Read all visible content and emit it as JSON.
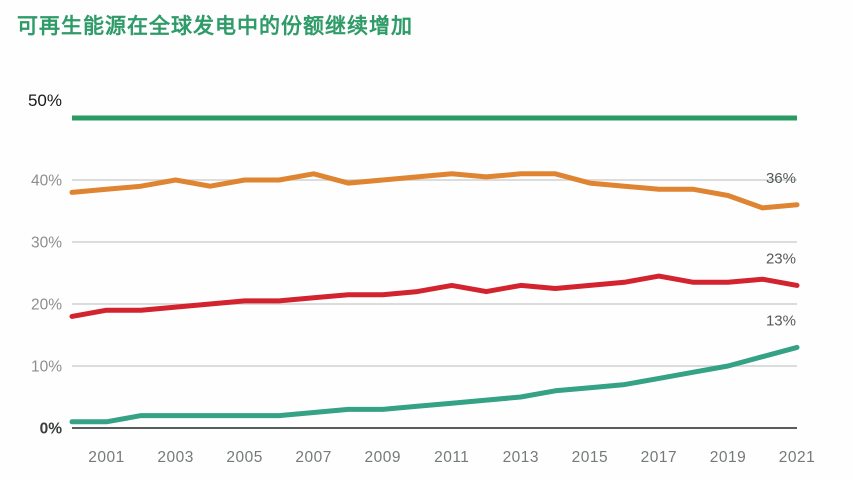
{
  "title": "可再生能源在全球发电中的份额继续增加",
  "colors": {
    "title_green": "#2E9B68",
    "top_gridline_green": "#2B9B66",
    "gridline_gray": "#CFD2D1",
    "zero_axis_line": "#595D5C",
    "y_tick_text": "#8B8F8E",
    "y_tick_top_text": "#1A1A1A",
    "y_tick_zero_text": "#3A3E3D",
    "x_tick_text": "#75797A",
    "end_label_text": "#55595A"
  },
  "chart_data": {
    "type": "line",
    "title": "可再生能源在全球发电中的份额继续增加",
    "xlabel": "",
    "ylabel": "",
    "x": [
      2000,
      2001,
      2002,
      2003,
      2004,
      2005,
      2006,
      2007,
      2008,
      2009,
      2010,
      2011,
      2012,
      2013,
      2014,
      2015,
      2016,
      2017,
      2018,
      2019,
      2020,
      2021
    ],
    "x_tick_labels": [
      "2001",
      "2003",
      "2005",
      "2007",
      "2009",
      "2011",
      "2013",
      "2015",
      "2017",
      "2019",
      "2021"
    ],
    "y_tick_labels": [
      "0%",
      "10%",
      "20%",
      "30%",
      "40%",
      "50%"
    ],
    "ylim": [
      0,
      50
    ],
    "grid": "horizontal gridlines every 10%; topmost 50% gridline drawn as thick green bar; 0% baseline dark",
    "legend_position": "none (end-of-line value labels instead)",
    "series": [
      {
        "name": "orange",
        "color": "#DF8430",
        "end_label": "36%",
        "values": [
          38,
          38.5,
          39,
          40,
          39,
          40,
          40,
          41,
          39.5,
          40,
          40.5,
          41,
          40.5,
          41,
          41,
          39.5,
          39,
          38.5,
          38.5,
          37.5,
          35.5,
          36
        ]
      },
      {
        "name": "red",
        "color": "#D2232E",
        "end_label": "23%",
        "values": [
          18,
          19,
          19,
          19.5,
          20,
          20.5,
          20.5,
          21,
          21.5,
          21.5,
          22,
          23,
          22,
          23,
          22.5,
          23,
          23.5,
          24.5,
          23.5,
          23.5,
          24,
          23
        ]
      },
      {
        "name": "teal",
        "color": "#35A285",
        "end_label": "13%",
        "values": [
          1,
          1,
          2,
          2,
          2,
          2,
          2,
          2.5,
          3,
          3,
          3.5,
          4,
          4.5,
          5,
          6,
          6.5,
          7,
          8,
          9,
          10,
          11.5,
          13
        ]
      }
    ]
  }
}
